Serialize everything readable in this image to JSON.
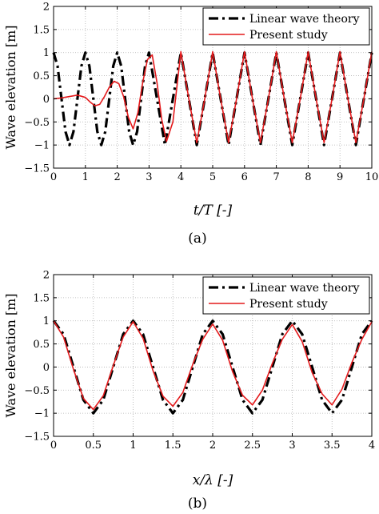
{
  "chart_data": [
    {
      "type": "line",
      "panel_label": "(a)",
      "xlabel": "t/T [-]",
      "ylabel": "Wave elevation [m]",
      "xlim": [
        0,
        10
      ],
      "ylim": [
        -1.5,
        2
      ],
      "xticks": [
        "0",
        "1",
        "2",
        "3",
        "4",
        "5",
        "6",
        "7",
        "8",
        "9",
        "10"
      ],
      "yticks": [
        "2",
        "1.5",
        "1",
        "0.5",
        "0",
        "−0.5",
        "−1",
        "−1.5"
      ],
      "legend_position": "top-right",
      "series": [
        {
          "name": "Linear wave theory",
          "color": "#000000",
          "style": "dash-dot",
          "x": [
            0,
            0.125,
            0.25,
            0.375,
            0.5,
            0.625,
            0.75,
            0.875,
            1,
            1.125,
            1.25,
            1.375,
            1.5,
            1.625,
            1.75,
            1.875,
            2,
            2.125,
            2.25,
            2.375,
            2.5,
            2.625,
            2.75,
            2.875,
            3,
            3.25,
            3.5,
            3.75,
            4,
            4.25,
            4.5,
            4.75,
            5,
            5.25,
            5.5,
            5.75,
            6,
            6.25,
            6.5,
            6.75,
            7,
            7.25,
            7.5,
            7.75,
            8,
            8.25,
            8.5,
            8.75,
            9,
            9.25,
            9.5,
            9.75,
            10
          ],
          "y": [
            1,
            0.71,
            0,
            -0.71,
            -1,
            -0.71,
            0,
            0.71,
            1,
            0.71,
            0,
            -0.71,
            -1,
            -0.71,
            0,
            0.71,
            1,
            0.71,
            0,
            -0.71,
            -1,
            -0.71,
            0,
            0.71,
            1,
            0,
            -1,
            0,
            1,
            0,
            -1,
            0,
            1,
            0,
            -1,
            0,
            1,
            0,
            -1,
            0,
            1,
            0,
            -1,
            0,
            1,
            0,
            -1,
            0,
            1,
            0,
            -1,
            0,
            1
          ]
        },
        {
          "name": "Present study",
          "color": "#e41a1c",
          "style": "solid",
          "x": [
            0,
            0.25,
            0.5,
            0.75,
            1,
            1.15,
            1.3,
            1.45,
            1.6,
            1.75,
            1.9,
            2.05,
            2.2,
            2.35,
            2.5,
            2.65,
            2.8,
            2.95,
            3.1,
            3.25,
            3.4,
            3.55,
            3.75,
            4,
            4.25,
            4.5,
            4.75,
            5,
            5.25,
            5.5,
            5.75,
            6,
            6.25,
            6.5,
            6.75,
            7,
            7.25,
            7.5,
            7.75,
            8,
            8.25,
            8.5,
            8.75,
            9,
            9.25,
            9.5,
            9.75,
            10
          ],
          "y": [
            0,
            0.02,
            0.05,
            0.08,
            0.03,
            -0.07,
            -0.15,
            -0.12,
            0.05,
            0.25,
            0.38,
            0.33,
            0.05,
            -0.4,
            -0.65,
            -0.3,
            0.35,
            0.85,
            0.95,
            0.35,
            -0.45,
            -0.92,
            -0.5,
            1.02,
            0,
            -0.95,
            0,
            1.02,
            0,
            -0.95,
            0,
            1.02,
            0,
            -0.95,
            0,
            1.02,
            0,
            -0.95,
            0,
            1.02,
            0,
            -0.95,
            0,
            1.02,
            0,
            -0.95,
            0,
            1.02
          ]
        }
      ]
    },
    {
      "type": "line",
      "panel_label": "(b)",
      "xlabel": "x/λ [-]",
      "ylabel": "Wave elevation [m]",
      "xlim": [
        0,
        4
      ],
      "ylim": [
        -1.5,
        2
      ],
      "xticks": [
        "0",
        "0.5",
        "1",
        "1.5",
        "2",
        "2.5",
        "3",
        "3.5",
        "4"
      ],
      "yticks": [
        "2",
        "1.5",
        "1",
        "0.5",
        "0",
        "−0.5",
        "−1",
        "−1.5"
      ],
      "legend_position": "top-right",
      "series": [
        {
          "name": "Linear wave theory",
          "color": "#000000",
          "style": "dash-dot",
          "x": [
            0,
            0.125,
            0.25,
            0.375,
            0.5,
            0.625,
            0.75,
            0.875,
            1,
            1.125,
            1.25,
            1.375,
            1.5,
            1.625,
            1.75,
            1.875,
            2,
            2.125,
            2.25,
            2.375,
            2.5,
            2.625,
            2.75,
            2.875,
            3,
            3.125,
            3.25,
            3.375,
            3.5,
            3.625,
            3.75,
            3.875,
            4
          ],
          "y": [
            1,
            0.71,
            0,
            -0.71,
            -1,
            -0.71,
            0,
            0.71,
            1,
            0.71,
            0,
            -0.71,
            -1,
            -0.71,
            0,
            0.71,
            1,
            0.71,
            0,
            -0.71,
            -1,
            -0.71,
            0,
            0.71,
            1,
            0.71,
            0,
            -0.71,
            -1,
            -0.71,
            0,
            0.71,
            1
          ]
        },
        {
          "name": "Present study",
          "color": "#e41a1c",
          "style": "solid",
          "x": [
            0,
            0.125,
            0.25,
            0.375,
            0.5,
            0.625,
            0.75,
            0.875,
            1,
            1.125,
            1.25,
            1.375,
            1.5,
            1.625,
            1.75,
            1.875,
            2,
            2.125,
            2.25,
            2.375,
            2.5,
            2.625,
            2.75,
            2.875,
            3,
            3.125,
            3.25,
            3.375,
            3.5,
            3.625,
            3.75,
            3.875,
            4
          ],
          "y": [
            1,
            0.65,
            -0.05,
            -0.68,
            -0.92,
            -0.62,
            0.03,
            0.65,
            0.98,
            0.62,
            -0.08,
            -0.63,
            -0.85,
            -0.55,
            0.06,
            0.6,
            0.93,
            0.58,
            -0.1,
            -0.61,
            -0.82,
            -0.5,
            0.08,
            0.6,
            0.92,
            0.55,
            -0.12,
            -0.58,
            -0.82,
            -0.48,
            0.1,
            0.6,
            0.98
          ]
        }
      ]
    }
  ]
}
